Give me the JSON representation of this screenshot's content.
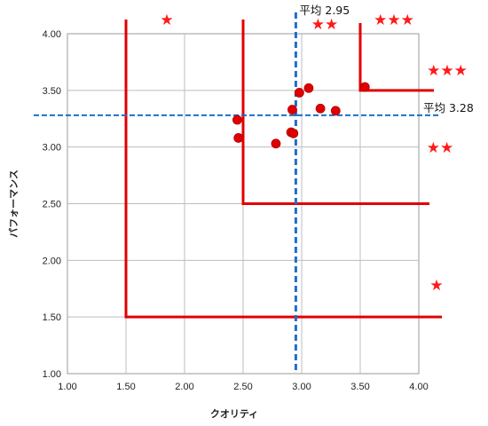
{
  "chart_data": {
    "type": "scatter",
    "title": "",
    "xlabel": "クオリティ",
    "ylabel": "パフォーマンス",
    "xlim": [
      1.0,
      4.0
    ],
    "ylim": [
      1.0,
      4.0
    ],
    "x_ticks": [
      "1.00",
      "1.50",
      "2.00",
      "2.50",
      "3.00",
      "3.50",
      "4.00"
    ],
    "y_ticks": [
      "1.00",
      "1.50",
      "2.00",
      "2.50",
      "3.00",
      "3.50",
      "4.00"
    ],
    "grid": true,
    "series": [
      {
        "points": [
          {
            "x": 2.45,
            "y": 3.24
          },
          {
            "x": 2.46,
            "y": 3.08
          },
          {
            "x": 2.78,
            "y": 3.03
          },
          {
            "x": 2.91,
            "y": 3.13
          },
          {
            "x": 2.93,
            "y": 3.12
          },
          {
            "x": 2.92,
            "y": 3.33
          },
          {
            "x": 2.98,
            "y": 3.48
          },
          {
            "x": 3.06,
            "y": 3.52
          },
          {
            "x": 3.16,
            "y": 3.34
          },
          {
            "x": 3.29,
            "y": 3.32
          },
          {
            "x": 3.54,
            "y": 3.53
          }
        ],
        "color": "#e00000"
      }
    ],
    "averages": {
      "x": {
        "value": 2.95,
        "label": "平均 2.95"
      },
      "y": {
        "value": 3.28,
        "label": "平均 3.28"
      }
    },
    "zones": [
      {
        "x_from": 1.5,
        "y_from": 1.5,
        "stars": "★"
      },
      {
        "x_from": 2.5,
        "y_from": 2.5,
        "stars": "★★"
      },
      {
        "x_from": 3.5,
        "y_from": 3.5,
        "stars": "★★★"
      }
    ],
    "star_labels": [
      "★",
      "★★",
      "★★★",
      "★★★",
      "★★",
      "★"
    ],
    "colors": {
      "points": "#e00000",
      "zones": "#e00000",
      "average_lines": "#1e6fc8",
      "grid": "#bdbdbd"
    }
  }
}
